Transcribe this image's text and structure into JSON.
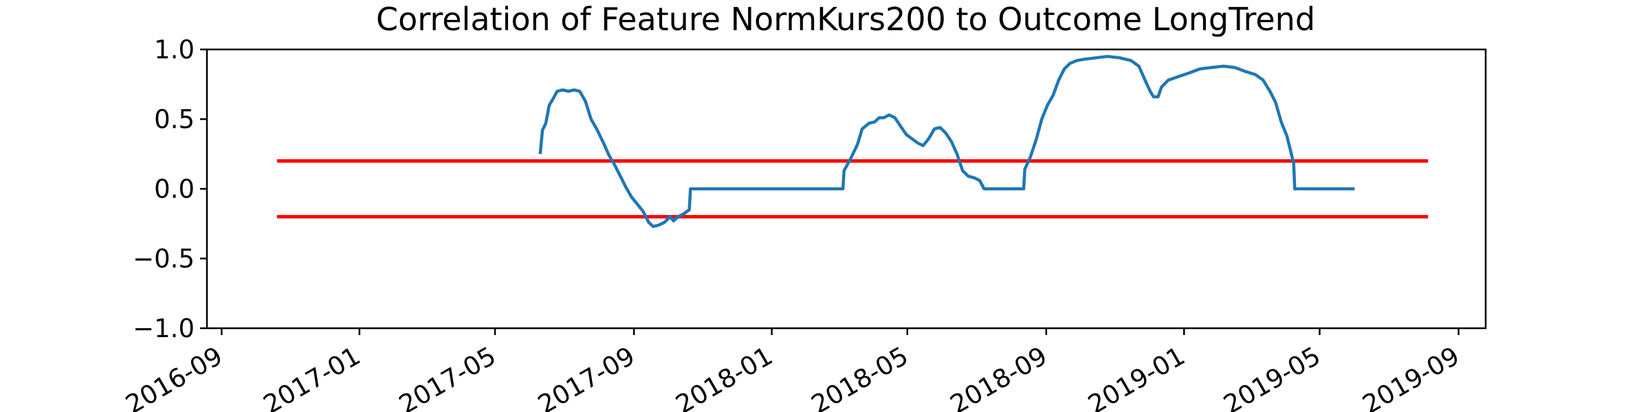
{
  "chart_data": {
    "type": "line",
    "title": "Correlation of Feature NormKurs200 to Outcome LongTrend",
    "xlabel": "",
    "ylabel": "",
    "xlim": [
      "2016-08-19",
      "2019-09-25"
    ],
    "ylim": [
      -1.0,
      1.0
    ],
    "grid": false,
    "legend": "none",
    "x_ticks": [
      "2016-09",
      "2017-01",
      "2017-05",
      "2017-09",
      "2018-01",
      "2018-05",
      "2018-09",
      "2019-01",
      "2019-05",
      "2019-09"
    ],
    "x_tick_dates": [
      "2016-09-01",
      "2017-01-01",
      "2017-05-01",
      "2017-09-01",
      "2018-01-01",
      "2018-05-01",
      "2018-09-01",
      "2019-01-01",
      "2019-05-01",
      "2019-09-01"
    ],
    "y_ticks": [
      1.0,
      0.5,
      0.0,
      -0.5,
      -1.0
    ],
    "y_tick_labels": [
      "1.0",
      "0.5",
      "0.0",
      "−0.5",
      "−1.0"
    ],
    "threshold_lines": [
      {
        "y": 0.2,
        "x_start": "2016-10-20",
        "x_end": "2019-08-05",
        "color": "#ff0000"
      },
      {
        "y": -0.2,
        "x_start": "2016-10-20",
        "x_end": "2019-08-05",
        "color": "#ff0000"
      }
    ],
    "series": [
      {
        "color": "#1f77b4",
        "points": [
          [
            "2017-06-10",
            0.25
          ],
          [
            "2017-06-12",
            0.42
          ],
          [
            "2017-06-15",
            0.47
          ],
          [
            "2017-06-18",
            0.6
          ],
          [
            "2017-06-21",
            0.64
          ],
          [
            "2017-06-25",
            0.7
          ],
          [
            "2017-06-30",
            0.71
          ],
          [
            "2017-07-05",
            0.7
          ],
          [
            "2017-07-10",
            0.71
          ],
          [
            "2017-07-15",
            0.7
          ],
          [
            "2017-07-20",
            0.63
          ],
          [
            "2017-07-25",
            0.5
          ],
          [
            "2017-07-30",
            0.43
          ],
          [
            "2017-08-05",
            0.33
          ],
          [
            "2017-08-10",
            0.24
          ],
          [
            "2017-08-15",
            0.17
          ],
          [
            "2017-08-20",
            0.09
          ],
          [
            "2017-08-25",
            0.01
          ],
          [
            "2017-08-30",
            -0.06
          ],
          [
            "2017-09-04",
            -0.11
          ],
          [
            "2017-09-09",
            -0.16
          ],
          [
            "2017-09-14",
            -0.24
          ],
          [
            "2017-09-18",
            -0.27
          ],
          [
            "2017-09-23",
            -0.26
          ],
          [
            "2017-09-28",
            -0.24
          ],
          [
            "2017-10-03",
            -0.2
          ],
          [
            "2017-10-06",
            -0.23
          ],
          [
            "2017-10-10",
            -0.2
          ],
          [
            "2017-10-15",
            -0.18
          ],
          [
            "2017-10-20",
            -0.15
          ],
          [
            "2017-10-21",
            0.0
          ],
          [
            "2018-03-05",
            0.0
          ],
          [
            "2018-03-06",
            0.13
          ],
          [
            "2018-03-12",
            0.22
          ],
          [
            "2018-03-18",
            0.32
          ],
          [
            "2018-03-22",
            0.43
          ],
          [
            "2018-03-28",
            0.47
          ],
          [
            "2018-04-02",
            0.48
          ],
          [
            "2018-04-06",
            0.51
          ],
          [
            "2018-04-10",
            0.51
          ],
          [
            "2018-04-15",
            0.53
          ],
          [
            "2018-04-20",
            0.51
          ],
          [
            "2018-04-25",
            0.45
          ],
          [
            "2018-04-30",
            0.39
          ],
          [
            "2018-05-05",
            0.36
          ],
          [
            "2018-05-10",
            0.33
          ],
          [
            "2018-05-15",
            0.31
          ],
          [
            "2018-05-20",
            0.36
          ],
          [
            "2018-05-25",
            0.43
          ],
          [
            "2018-05-30",
            0.44
          ],
          [
            "2018-06-04",
            0.4
          ],
          [
            "2018-06-09",
            0.34
          ],
          [
            "2018-06-14",
            0.25
          ],
          [
            "2018-06-19",
            0.13
          ],
          [
            "2018-06-24",
            0.09
          ],
          [
            "2018-06-29",
            0.08
          ],
          [
            "2018-07-04",
            0.06
          ],
          [
            "2018-07-08",
            0.0
          ],
          [
            "2018-08-12",
            0.0
          ],
          [
            "2018-08-13",
            0.14
          ],
          [
            "2018-08-18",
            0.23
          ],
          [
            "2018-08-23",
            0.35
          ],
          [
            "2018-08-28",
            0.5
          ],
          [
            "2018-09-02",
            0.6
          ],
          [
            "2018-09-07",
            0.67
          ],
          [
            "2018-09-12",
            0.78
          ],
          [
            "2018-09-17",
            0.86
          ],
          [
            "2018-09-22",
            0.9
          ],
          [
            "2018-09-28",
            0.92
          ],
          [
            "2018-10-05",
            0.93
          ],
          [
            "2018-10-15",
            0.94
          ],
          [
            "2018-10-25",
            0.95
          ],
          [
            "2018-11-05",
            0.94
          ],
          [
            "2018-11-15",
            0.92
          ],
          [
            "2018-11-22",
            0.88
          ],
          [
            "2018-11-28",
            0.77
          ],
          [
            "2018-12-02",
            0.7
          ],
          [
            "2018-12-05",
            0.66
          ],
          [
            "2018-12-09",
            0.66
          ],
          [
            "2018-12-12",
            0.73
          ],
          [
            "2018-12-18",
            0.78
          ],
          [
            "2018-12-25",
            0.8
          ],
          [
            "2019-01-05",
            0.83
          ],
          [
            "2019-01-15",
            0.86
          ],
          [
            "2019-01-25",
            0.87
          ],
          [
            "2019-02-05",
            0.88
          ],
          [
            "2019-02-15",
            0.87
          ],
          [
            "2019-02-25",
            0.84
          ],
          [
            "2019-03-05",
            0.82
          ],
          [
            "2019-03-12",
            0.78
          ],
          [
            "2019-03-18",
            0.7
          ],
          [
            "2019-03-23",
            0.62
          ],
          [
            "2019-03-28",
            0.48
          ],
          [
            "2019-04-02",
            0.38
          ],
          [
            "2019-04-06",
            0.25
          ],
          [
            "2019-04-08",
            0.18
          ],
          [
            "2019-04-09",
            0.0
          ],
          [
            "2019-06-01",
            0.0
          ]
        ]
      }
    ]
  }
}
